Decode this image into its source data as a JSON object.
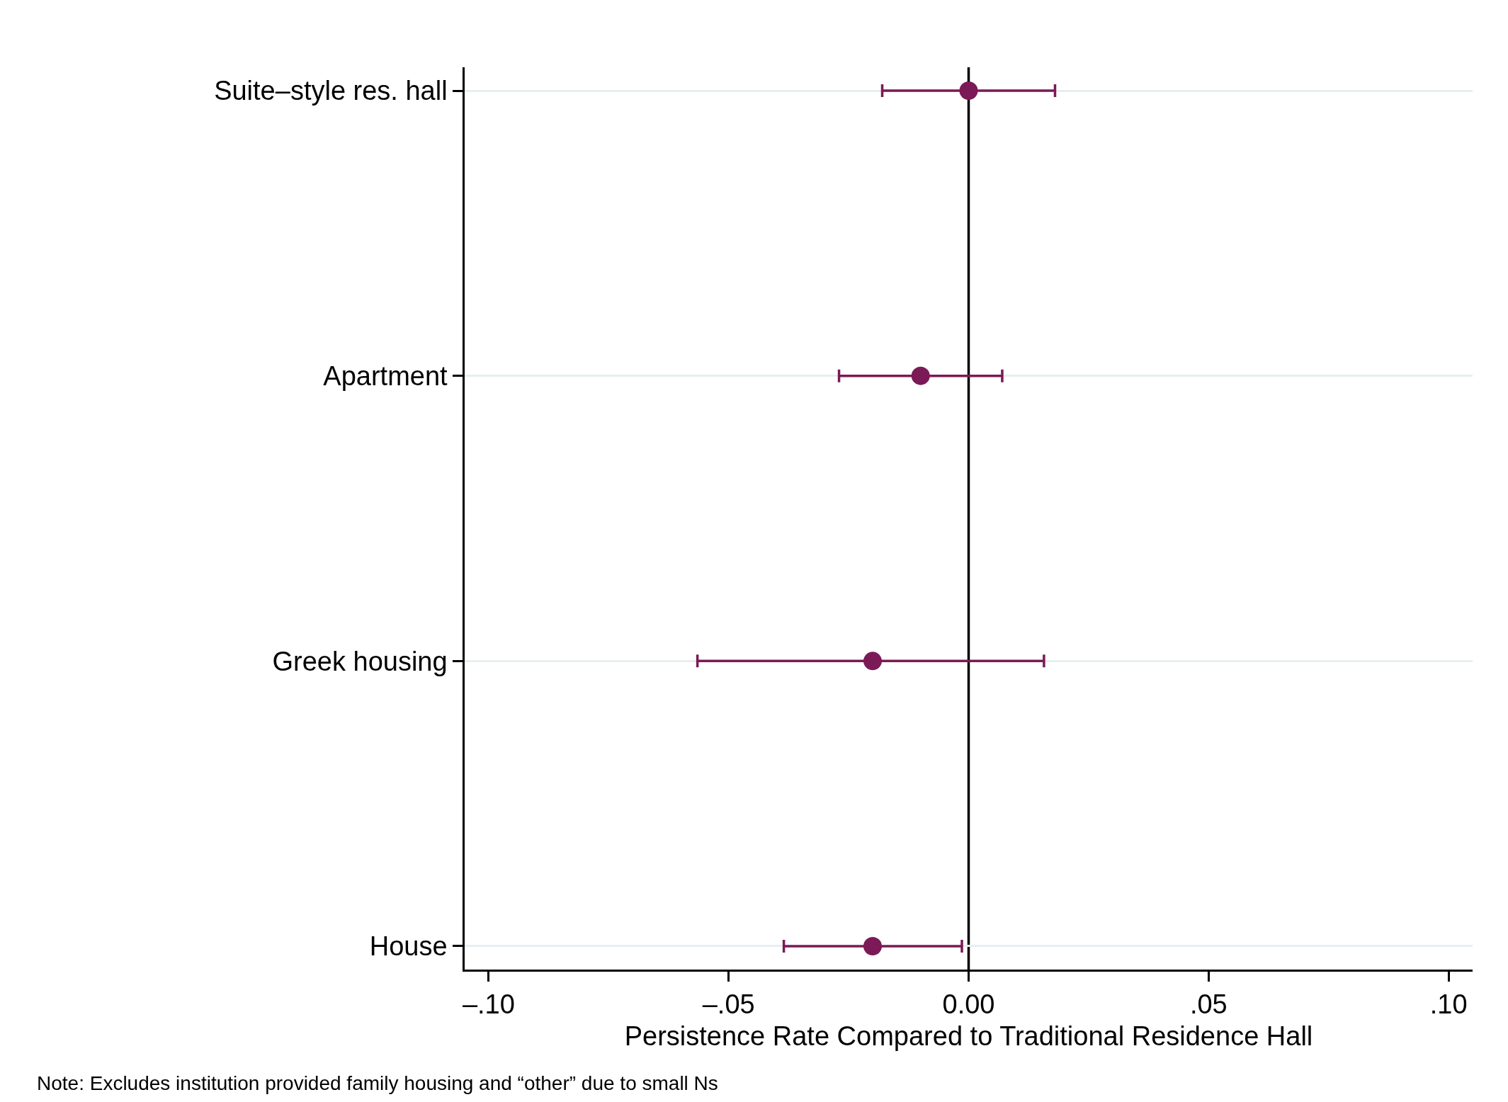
{
  "chart_data": {
    "type": "scatter",
    "orientation": "horizontal",
    "categories": [
      "Suite–style res. hall",
      "Apartment",
      "Greek housing",
      "House"
    ],
    "series": [
      {
        "color": "#7b1a56",
        "values": [
          0.0,
          -0.01,
          -0.02,
          -0.02
        ],
        "errors": [
          [
            -0.018,
            0.018
          ],
          [
            -0.027,
            0.007
          ],
          [
            -0.0565,
            0.0157
          ],
          [
            -0.0385,
            -0.0014
          ]
        ]
      }
    ],
    "xlabel": "Persistence Rate Compared to Traditional Residence Hall",
    "xlim": [
      -0.105,
      0.105
    ],
    "xticks": [
      {
        "value": -0.1,
        "label": "–.10"
      },
      {
        "value": -0.05,
        "label": "–.05"
      },
      {
        "value": 0,
        "label": "0.00"
      },
      {
        "value": 0.05,
        "label": ".05"
      },
      {
        "value": 0.1,
        "label": ".10"
      }
    ],
    "ref_lines": [
      {
        "axis": "x",
        "value": 0,
        "color": "#000000"
      }
    ],
    "grid": "y",
    "marker": "circle",
    "annotations": [
      "Note: Excludes institution provided family housing and “other” due to small Ns"
    ]
  }
}
